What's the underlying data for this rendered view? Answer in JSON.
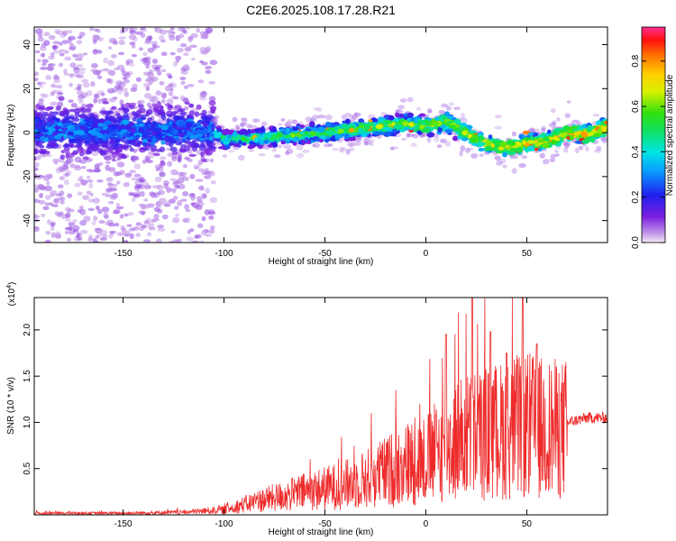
{
  "title": "C2E6.2025.108.17.28.R21",
  "chart_data": [
    {
      "type": "heatmap",
      "xlabel": "Height of straight line (km)",
      "ylabel": "Frequency (Hz)",
      "xlim": [
        -194,
        90
      ],
      "ylim": [
        -50,
        48
      ],
      "xticks": [
        -150,
        -100,
        -50,
        0,
        50
      ],
      "yticks": [
        -40,
        -20,
        0,
        20,
        40
      ],
      "colorbar": {
        "label": "Normalized spectral amplitude",
        "range": [
          0.0,
          0.95
        ],
        "ticks": [
          0.0,
          0.2,
          0.4,
          0.6,
          0.8
        ],
        "tick_labels": [
          "0.0",
          "0.2",
          "0.4",
          "0.6",
          "0.8"
        ]
      },
      "ridge": {
        "x": [
          -194,
          -150,
          -105,
          -100,
          -75,
          -50,
          -30,
          -10,
          0,
          10,
          20,
          30,
          40,
          50,
          60,
          70,
          80,
          90
        ],
        "y": [
          1,
          1,
          1,
          -3,
          -2,
          0,
          2,
          4,
          3,
          5,
          0,
          -5,
          -7,
          -5,
          -4,
          0,
          -1,
          3
        ]
      }
    },
    {
      "type": "line",
      "xlabel": "Height of straight line (km)",
      "ylabel": "SNR (10 * v/v)",
      "y_multiplier": "(x10",
      "y_multiplier_exp": "4",
      "xlim": [
        -194,
        90
      ],
      "ylim": [
        0,
        2.35
      ],
      "xticks": [
        -150,
        -100,
        -50,
        0,
        50
      ],
      "yticks": [
        0.5,
        1.0,
        1.5,
        2.0
      ],
      "ytick_labels": [
        "0.5",
        "1.0",
        "1.5",
        "2.0"
      ],
      "series": [
        {
          "x": [
            -194,
            -150,
            -120,
            -100,
            -90,
            -80,
            -70,
            -60,
            -50,
            -40,
            -30,
            -20,
            -10,
            0,
            10,
            20,
            30,
            40,
            50,
            60,
            70,
            80,
            90
          ],
          "y": [
            0.02,
            0.02,
            0.03,
            0.06,
            0.12,
            0.18,
            0.22,
            0.27,
            0.31,
            0.35,
            0.42,
            0.5,
            0.6,
            0.65,
            0.8,
            0.92,
            0.95,
            1.0,
            1.05,
            1.0,
            1.0,
            1.05,
            1.05
          ],
          "color": "#ee2b2b"
        }
      ],
      "peaks": [
        {
          "x": 23,
          "y": 2.35
        },
        {
          "x": 48,
          "y": 2.35
        },
        {
          "x": 10,
          "y": 1.95
        },
        {
          "x": 32,
          "y": 1.98
        },
        {
          "x": 55,
          "y": 1.85
        },
        {
          "x": 40,
          "y": 1.75
        }
      ]
    }
  ]
}
